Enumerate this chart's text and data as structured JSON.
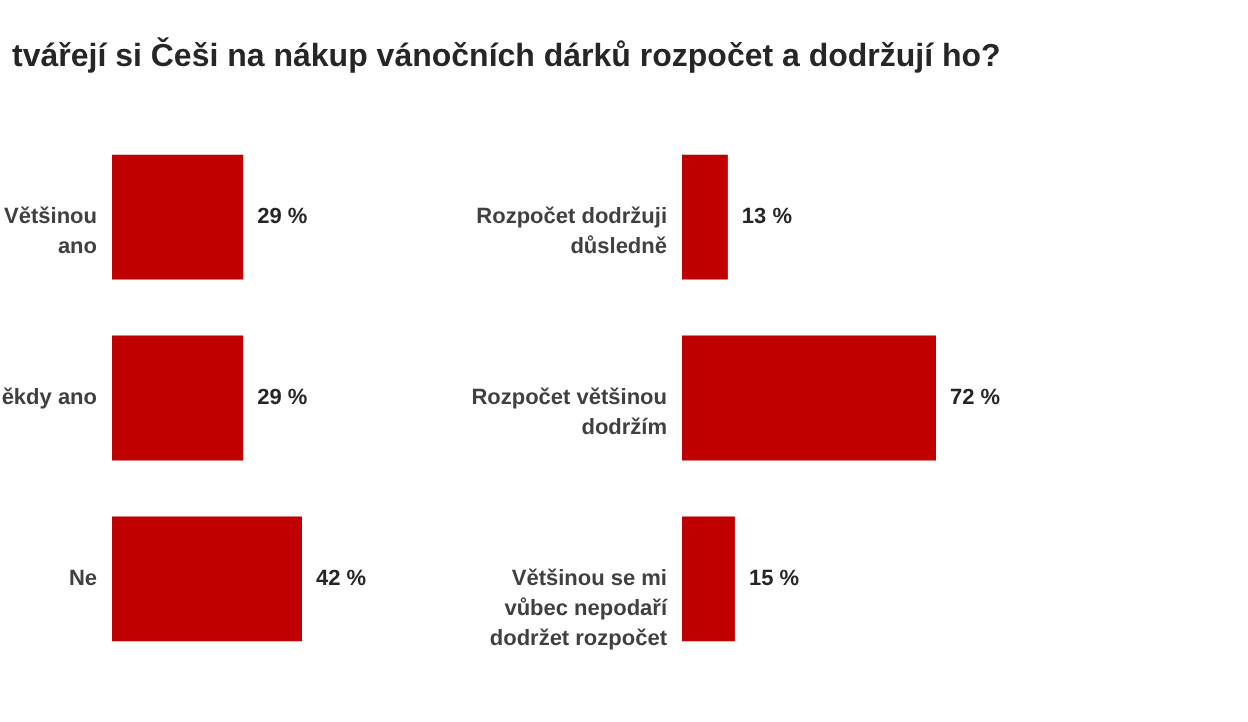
{
  "chart_data": [
    {
      "type": "bar",
      "orientation": "horizontal",
      "title": "tvářejí si Češi na nákup vánočních dárků rozpočet a dodržují ho?",
      "categories": [
        "Většinou\nano",
        "ěkdy ano",
        "Ne"
      ],
      "values": [
        29,
        29,
        42
      ],
      "color": "#c00000",
      "data_labels": true,
      "value_labels": [
        "29 %",
        "29 %",
        "42 %"
      ]
    },
    {
      "type": "bar",
      "orientation": "horizontal",
      "categories": [
        "Rozpočet dodržuji\ndůsledně",
        "Rozpočet většinou\ndodržím",
        "Většinou se mi\nvůbec nepodaří\ndodržet rozpočet"
      ],
      "values": [
        13,
        72,
        15
      ],
      "color": "#c00000",
      "data_labels": true,
      "value_labels": [
        "13 %",
        "72 %",
        "15 %"
      ]
    }
  ]
}
